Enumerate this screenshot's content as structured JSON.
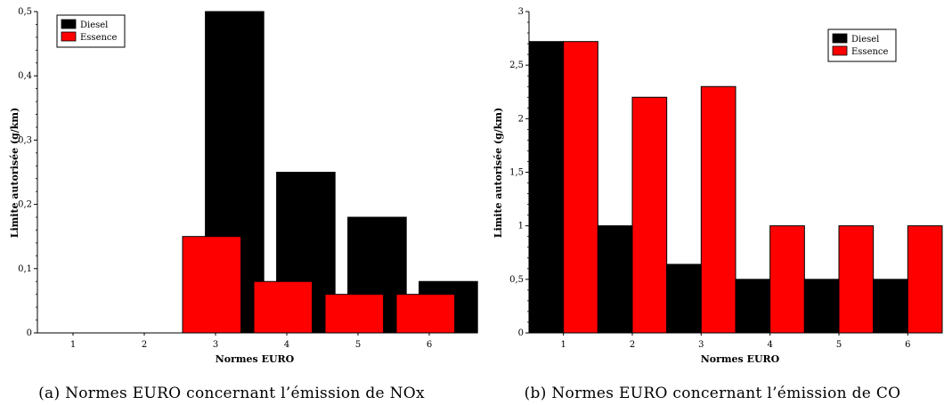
{
  "chart_data": [
    {
      "type": "bar",
      "caption": "(a) Normes EURO concernant l’émission de NOx",
      "xlabel": "Normes EURO",
      "ylabel": "Limite autorisée (g/km)",
      "categories": [
        "1",
        "2",
        "3",
        "4",
        "5",
        "6"
      ],
      "ylim": [
        0,
        0.5
      ],
      "yticks": [
        "0",
        "0,1",
        "0,2",
        "0,3",
        "0,4",
        "0,5"
      ],
      "legend_position": "top-left",
      "overlap": true,
      "series": [
        {
          "name": "Diesel",
          "values": [
            0,
            0,
            0.5,
            0.25,
            0.18,
            0.08
          ]
        },
        {
          "name": "Essence",
          "values": [
            0,
            0,
            0.15,
            0.08,
            0.06,
            0.06
          ]
        }
      ]
    },
    {
      "type": "bar",
      "caption": "(b) Normes EURO concernant l’émission de CO",
      "xlabel": "Normes EURO",
      "ylabel": "Limite autorisée (g/km)",
      "categories": [
        "1",
        "2",
        "3",
        "4",
        "5",
        "6"
      ],
      "ylim": [
        0,
        3
      ],
      "yticks": [
        "0",
        "0,5",
        "1",
        "1,5",
        "2",
        "2,5",
        "3"
      ],
      "legend_position": "top-right",
      "overlap": false,
      "series": [
        {
          "name": "Diesel",
          "values": [
            2.72,
            1.0,
            0.64,
            0.5,
            0.5,
            0.5
          ]
        },
        {
          "name": "Essence",
          "values": [
            2.72,
            2.2,
            2.3,
            1.0,
            1.0,
            1.0
          ]
        }
      ]
    }
  ],
  "colors": {
    "diesel": "#000000",
    "essence": "#ff0000"
  }
}
